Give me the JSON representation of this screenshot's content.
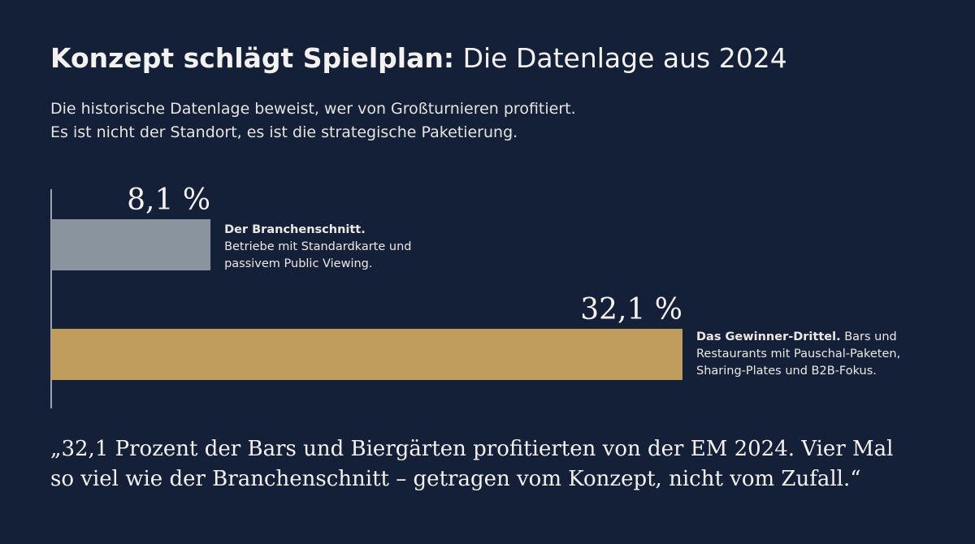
{
  "header": {
    "title_bold": "Konzept schlägt Spielplan:",
    "title_rest": "Die Datenlage aus 2024",
    "subtitle_line1": "Die historische Datenlage beweist, wer von Großturnieren profitiert.",
    "subtitle_line2": "Es ist nicht der Standort, es ist die strategische Paketierung."
  },
  "chart_data": {
    "type": "bar",
    "orientation": "horizontal",
    "categories": [
      "Der Branchenschnitt.",
      "Das Gewinner-Drittel."
    ],
    "values": [
      8.1,
      32.1
    ],
    "value_labels": [
      "8,1 %",
      "32,1 %"
    ],
    "xlim": [
      0,
      32.1
    ],
    "grid": false,
    "colors": [
      "#8a949e",
      "#bf9d5c"
    ],
    "descriptions": [
      {
        "lead": "Der Branchenschnitt.",
        "line1_rest": "",
        "line2": "Betriebe mit Standardkarte und",
        "line3": "passivem Public Viewing."
      },
      {
        "lead": "Das Gewinner-Drittel.",
        "line1_rest": " Bars und",
        "line2": "Restaurants mit Pauschal-Paketen,",
        "line3": "Sharing-Plates und B2B-Fokus."
      }
    ]
  },
  "quote": {
    "line1": "„32,1 Prozent der Bars und Biergärten profitierten von der EM 2024. Vier Mal",
    "line2": "so viel wie der Branchenschnitt – getragen vom Konzept, nicht vom Zufall.“"
  },
  "colors": {
    "background": "#142038",
    "axis": "#c9ccd2",
    "text": "#f4f2ee"
  }
}
